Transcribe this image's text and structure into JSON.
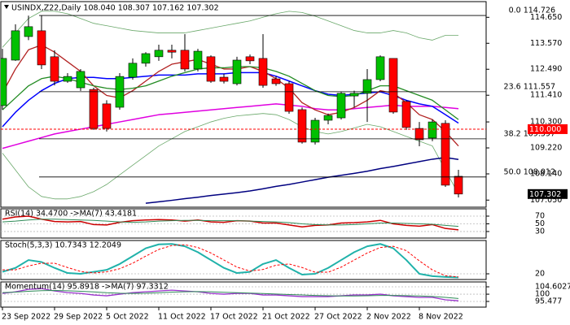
{
  "chart_data": [
    {
      "type": "candlestick",
      "title": "USINDX,Z22,Daily  108.040 108.307 107.162 107.302",
      "categories": [
        "23 Sep 2022",
        null,
        null,
        null,
        "29 Sep 2022",
        null,
        null,
        null,
        "5 Oct 2022",
        null,
        null,
        null,
        "11 Oct 2022",
        null,
        null,
        null,
        "17 Oct 2022",
        null,
        null,
        null,
        "21 Oct 2022",
        null,
        null,
        null,
        "27 Oct 2022",
        null,
        null,
        null,
        "2 Nov 2022",
        null,
        null,
        null,
        "8 Nov 2022",
        null,
        null,
        null
      ],
      "open": [
        110.98,
        112.87,
        113.85,
        114.09,
        113.01,
        111.99,
        111.72,
        111.65,
        111.05,
        110.91,
        112.16,
        112.74,
        113.01,
        113.28,
        113.28,
        112.5,
        113.01,
        112.16,
        111.89,
        113.01,
        112.94,
        112.09,
        111.89,
        110.81,
        109.46,
        110.37,
        110.47,
        111.38,
        111.49,
        112.06,
        112.94,
        111.15,
        110.03,
        109.63,
        110.24,
        108.04
      ],
      "high": [
        113.34,
        114.36,
        114.72,
        114.72,
        113.28,
        112.33,
        112.5,
        111.72,
        111.2,
        112.33,
        112.94,
        113.2,
        113.51,
        113.51,
        113.95,
        113.34,
        113.07,
        112.3,
        113.01,
        113.1,
        113.95,
        112.2,
        111.99,
        110.9,
        110.47,
        110.65,
        111.55,
        111.6,
        112.5,
        113.07,
        112.94,
        111.2,
        110.3,
        110.4,
        110.37,
        108.307
      ],
      "low": [
        110.81,
        112.84,
        113.7,
        112.5,
        111.82,
        111.93,
        111.59,
        109.97,
        109.9,
        110.81,
        112.06,
        112.6,
        112.84,
        112.94,
        112.4,
        112.4,
        111.93,
        111.9,
        111.82,
        112.7,
        111.72,
        111.8,
        110.64,
        109.4,
        109.36,
        110.2,
        110.4,
        110.9,
        110.3,
        111.99,
        110.64,
        109.97,
        109.29,
        109.5,
        107.6,
        107.162
      ],
      "close": [
        112.94,
        114.09,
        114.26,
        112.67,
        111.99,
        112.19,
        112.4,
        110.03,
        110.03,
        112.19,
        112.74,
        113.14,
        113.28,
        113.2,
        112.5,
        113.24,
        111.99,
        111.99,
        112.87,
        112.84,
        111.82,
        111.89,
        110.74,
        109.46,
        110.37,
        110.57,
        111.49,
        111.49,
        112.06,
        113.01,
        110.71,
        110.07,
        109.56,
        110.3,
        107.67,
        107.302
      ],
      "up_color": "#00c000",
      "down_color": "#ff0000",
      "series": [
        {
          "color": "#6aa86a",
          "width": 0.8,
          "values": [
            113.4,
            114.0,
            114.6,
            114.9,
            114.9,
            114.8,
            114.6,
            114.4,
            114.3,
            114.2,
            114.1,
            114.05,
            114.0,
            114.0,
            114.0,
            114.1,
            114.2,
            114.3,
            114.4,
            114.5,
            114.65,
            114.8,
            114.9,
            114.85,
            114.7,
            114.5,
            114.3,
            114.1,
            114.0,
            114.0,
            114.1,
            114.0,
            113.8,
            113.7,
            113.9,
            113.9
          ]
        },
        {
          "color": "#6aa86a",
          "width": 0.8,
          "values": [
            109.0,
            108.3,
            107.6,
            107.2,
            107.1,
            107.1,
            107.2,
            107.4,
            107.7,
            108.1,
            108.5,
            108.9,
            109.3,
            109.6,
            109.9,
            110.1,
            110.3,
            110.45,
            110.55,
            110.6,
            110.65,
            110.6,
            110.4,
            110.1,
            109.9,
            109.8,
            109.9,
            110.05,
            110.2,
            110.1,
            109.9,
            109.7,
            109.5,
            109.3,
            108.3,
            107.3
          ]
        },
        {
          "color": "#e000e0",
          "width": 1.5,
          "values": [
            109.2,
            109.35,
            109.5,
            109.65,
            109.8,
            109.9,
            110.0,
            110.1,
            110.2,
            110.3,
            110.4,
            110.5,
            110.6,
            110.65,
            110.7,
            110.75,
            110.8,
            110.85,
            110.9,
            110.95,
            111.0,
            111.05,
            111.0,
            110.95,
            110.85,
            110.8,
            110.8,
            110.85,
            110.9,
            110.95,
            111.0,
            110.95,
            110.95,
            110.95,
            110.9,
            110.85
          ]
        },
        {
          "color": "#000080",
          "width": 1.5,
          "values": [
            null,
            null,
            null,
            null,
            null,
            null,
            null,
            null,
            null,
            null,
            null,
            106.92,
            106.98,
            107.04,
            107.11,
            107.17,
            107.24,
            107.3,
            107.36,
            107.43,
            107.52,
            107.62,
            107.7,
            107.8,
            107.9,
            108.0,
            108.08,
            108.16,
            108.25,
            108.36,
            108.45,
            108.55,
            108.65,
            108.75,
            108.82,
            108.74
          ]
        },
        {
          "color": "#0000ff",
          "width": 1.5,
          "values": [
            110.1,
            110.7,
            111.2,
            111.6,
            111.9,
            112.1,
            112.15,
            112.15,
            112.1,
            112.1,
            112.15,
            112.2,
            112.25,
            112.25,
            112.25,
            112.3,
            112.3,
            112.3,
            112.35,
            112.35,
            112.35,
            112.2,
            112.0,
            111.8,
            111.6,
            111.45,
            111.4,
            111.45,
            111.5,
            111.55,
            111.4,
            111.2,
            111.05,
            110.95,
            110.6,
            110.25
          ]
        },
        {
          "color": "#b22222",
          "width": 1.3,
          "values": [
            111.5,
            112.5,
            113.3,
            113.5,
            113.2,
            112.8,
            112.4,
            111.8,
            111.4,
            111.3,
            111.6,
            112.0,
            112.4,
            112.7,
            112.8,
            112.9,
            112.7,
            112.5,
            112.5,
            112.6,
            112.4,
            112.1,
            111.7,
            111.1,
            110.8,
            110.6,
            110.7,
            110.9,
            111.2,
            111.6,
            111.5,
            111.1,
            110.6,
            110.4,
            109.9,
            109.3
          ]
        },
        {
          "color": "#228b22",
          "width": 1.3,
          "values": [
            110.8,
            111.3,
            111.8,
            112.1,
            112.2,
            112.1,
            111.95,
            111.8,
            111.7,
            111.65,
            111.7,
            111.8,
            112.0,
            112.2,
            112.35,
            112.5,
            112.55,
            112.55,
            112.6,
            112.6,
            112.55,
            112.4,
            112.2,
            111.9,
            111.6,
            111.4,
            111.35,
            111.4,
            111.6,
            111.8,
            111.8,
            111.6,
            111.4,
            111.2,
            110.8,
            110.4
          ]
        }
      ],
      "ylim": [
        106.755,
        115.302
      ],
      "yticks": [
        {
          "value": 114.65,
          "label": "114.650"
        },
        {
          "value": 113.57,
          "label": "113.570"
        },
        {
          "value": 112.49,
          "label": "112.490"
        },
        {
          "value": 111.41,
          "label": "111.410"
        },
        {
          "value": 110.3,
          "label": "110.300"
        },
        {
          "value": 109.22,
          "label": "109.220"
        },
        {
          "value": 108.14,
          "label": "108.140"
        },
        {
          "value": 107.05,
          "label": "107.050"
        }
      ],
      "levels": [
        {
          "value": 114.726,
          "label": "0.0 114.726"
        },
        {
          "value": 111.557,
          "label": "23.6 111.557"
        },
        {
          "value": 109.597,
          "label": "38.2 109.597"
        },
        {
          "value": 108.012,
          "label": "50.0 108.012"
        }
      ],
      "price_lines": [
        {
          "value": 110.0,
          "label": "110.000",
          "color": "#ff0000",
          "line": true
        },
        {
          "value": 107.302,
          "label": "107.302",
          "color": "#000000",
          "line": false
        }
      ]
    },
    {
      "type": "line",
      "title": "RSI(14) 34.4700 ->MA(7) 43.4181",
      "ylim": [
        13,
        89
      ],
      "yticks": [
        70,
        50,
        30
      ],
      "grid": true,
      "series": [
        {
          "color": "#cc0000",
          "width": 1.5,
          "values": [
            62,
            68,
            70,
            62,
            56,
            55,
            56,
            48,
            47,
            54,
            58,
            60,
            61,
            60,
            57,
            60,
            55,
            54,
            58,
            57,
            52,
            52,
            47,
            42,
            46,
            47,
            52,
            53,
            55,
            59,
            50,
            46,
            44,
            48,
            38,
            34.47
          ]
        },
        {
          "color": "#2e8b57",
          "width": 1,
          "values": [
            55,
            57,
            60,
            62,
            62,
            61,
            60,
            59,
            57,
            55,
            54,
            55,
            57,
            58,
            59,
            59,
            58,
            58,
            58,
            57,
            56,
            55,
            53,
            50,
            48,
            47,
            47,
            48,
            50,
            52,
            52,
            51,
            50,
            49,
            46,
            43.4181
          ]
        }
      ]
    },
    {
      "type": "line",
      "title": "Stoch(5,3,3) 10.7343 12.2049",
      "ylim": [
        5.5,
        104.8
      ],
      "yticks": [
        20
      ],
      "grid": true,
      "series": [
        {
          "color": "#20b2aa",
          "width": 2,
          "values": [
            25,
            35,
            55,
            50,
            35,
            22,
            20,
            25,
            30,
            45,
            65,
            85,
            95,
            96,
            90,
            75,
            55,
            35,
            22,
            25,
            45,
            55,
            35,
            18,
            20,
            35,
            55,
            75,
            90,
            96,
            85,
            55,
            20,
            14,
            12,
            10.7343
          ]
        },
        {
          "color": "#ff0000",
          "width": 1,
          "dash": true,
          "values": [
            30,
            30,
            40,
            47,
            47,
            36,
            26,
            22,
            25,
            33,
            47,
            65,
            82,
            92,
            94,
            87,
            73,
            55,
            37,
            27,
            31,
            42,
            45,
            36,
            24,
            24,
            37,
            55,
            73,
            87,
            90,
            79,
            53,
            30,
            15,
            12.2049
          ]
        }
      ]
    },
    {
      "type": "line",
      "title": "Momentum(14) 95.8918 ->MA(7) 97.3312",
      "ylim": [
        91.93,
        107.64
      ],
      "yticks": [
        104.6027,
        100,
        95.477
      ],
      "grid": true,
      "series": [
        {
          "color": "#9932cc",
          "width": 1.3,
          "values": [
            100.5,
            101.5,
            103,
            103.5,
            102,
            101,
            100.5,
            99.5,
            99,
            100,
            101,
            101.5,
            102,
            102.5,
            102,
            101.5,
            100.5,
            100,
            100.5,
            100.5,
            99.5,
            99.5,
            99,
            98.5,
            98.5,
            98.5,
            99,
            99.5,
            99.5,
            100,
            99,
            98.5,
            98,
            98,
            96.5,
            95.8918
          ]
        },
        {
          "color": "#2e8b57",
          "width": 1,
          "values": [
            101,
            101.3,
            101.8,
            102.2,
            102.3,
            102.1,
            101.8,
            101.4,
            100.9,
            100.6,
            100.5,
            100.6,
            100.9,
            101.3,
            101.5,
            101.6,
            101.5,
            101.2,
            100.9,
            100.7,
            100.4,
            100.1,
            99.8,
            99.5,
            99.2,
            99.0,
            98.9,
            98.9,
            99.0,
            99.2,
            99.2,
            99.1,
            98.9,
            98.6,
            98.0,
            97.3312
          ]
        }
      ]
    }
  ]
}
